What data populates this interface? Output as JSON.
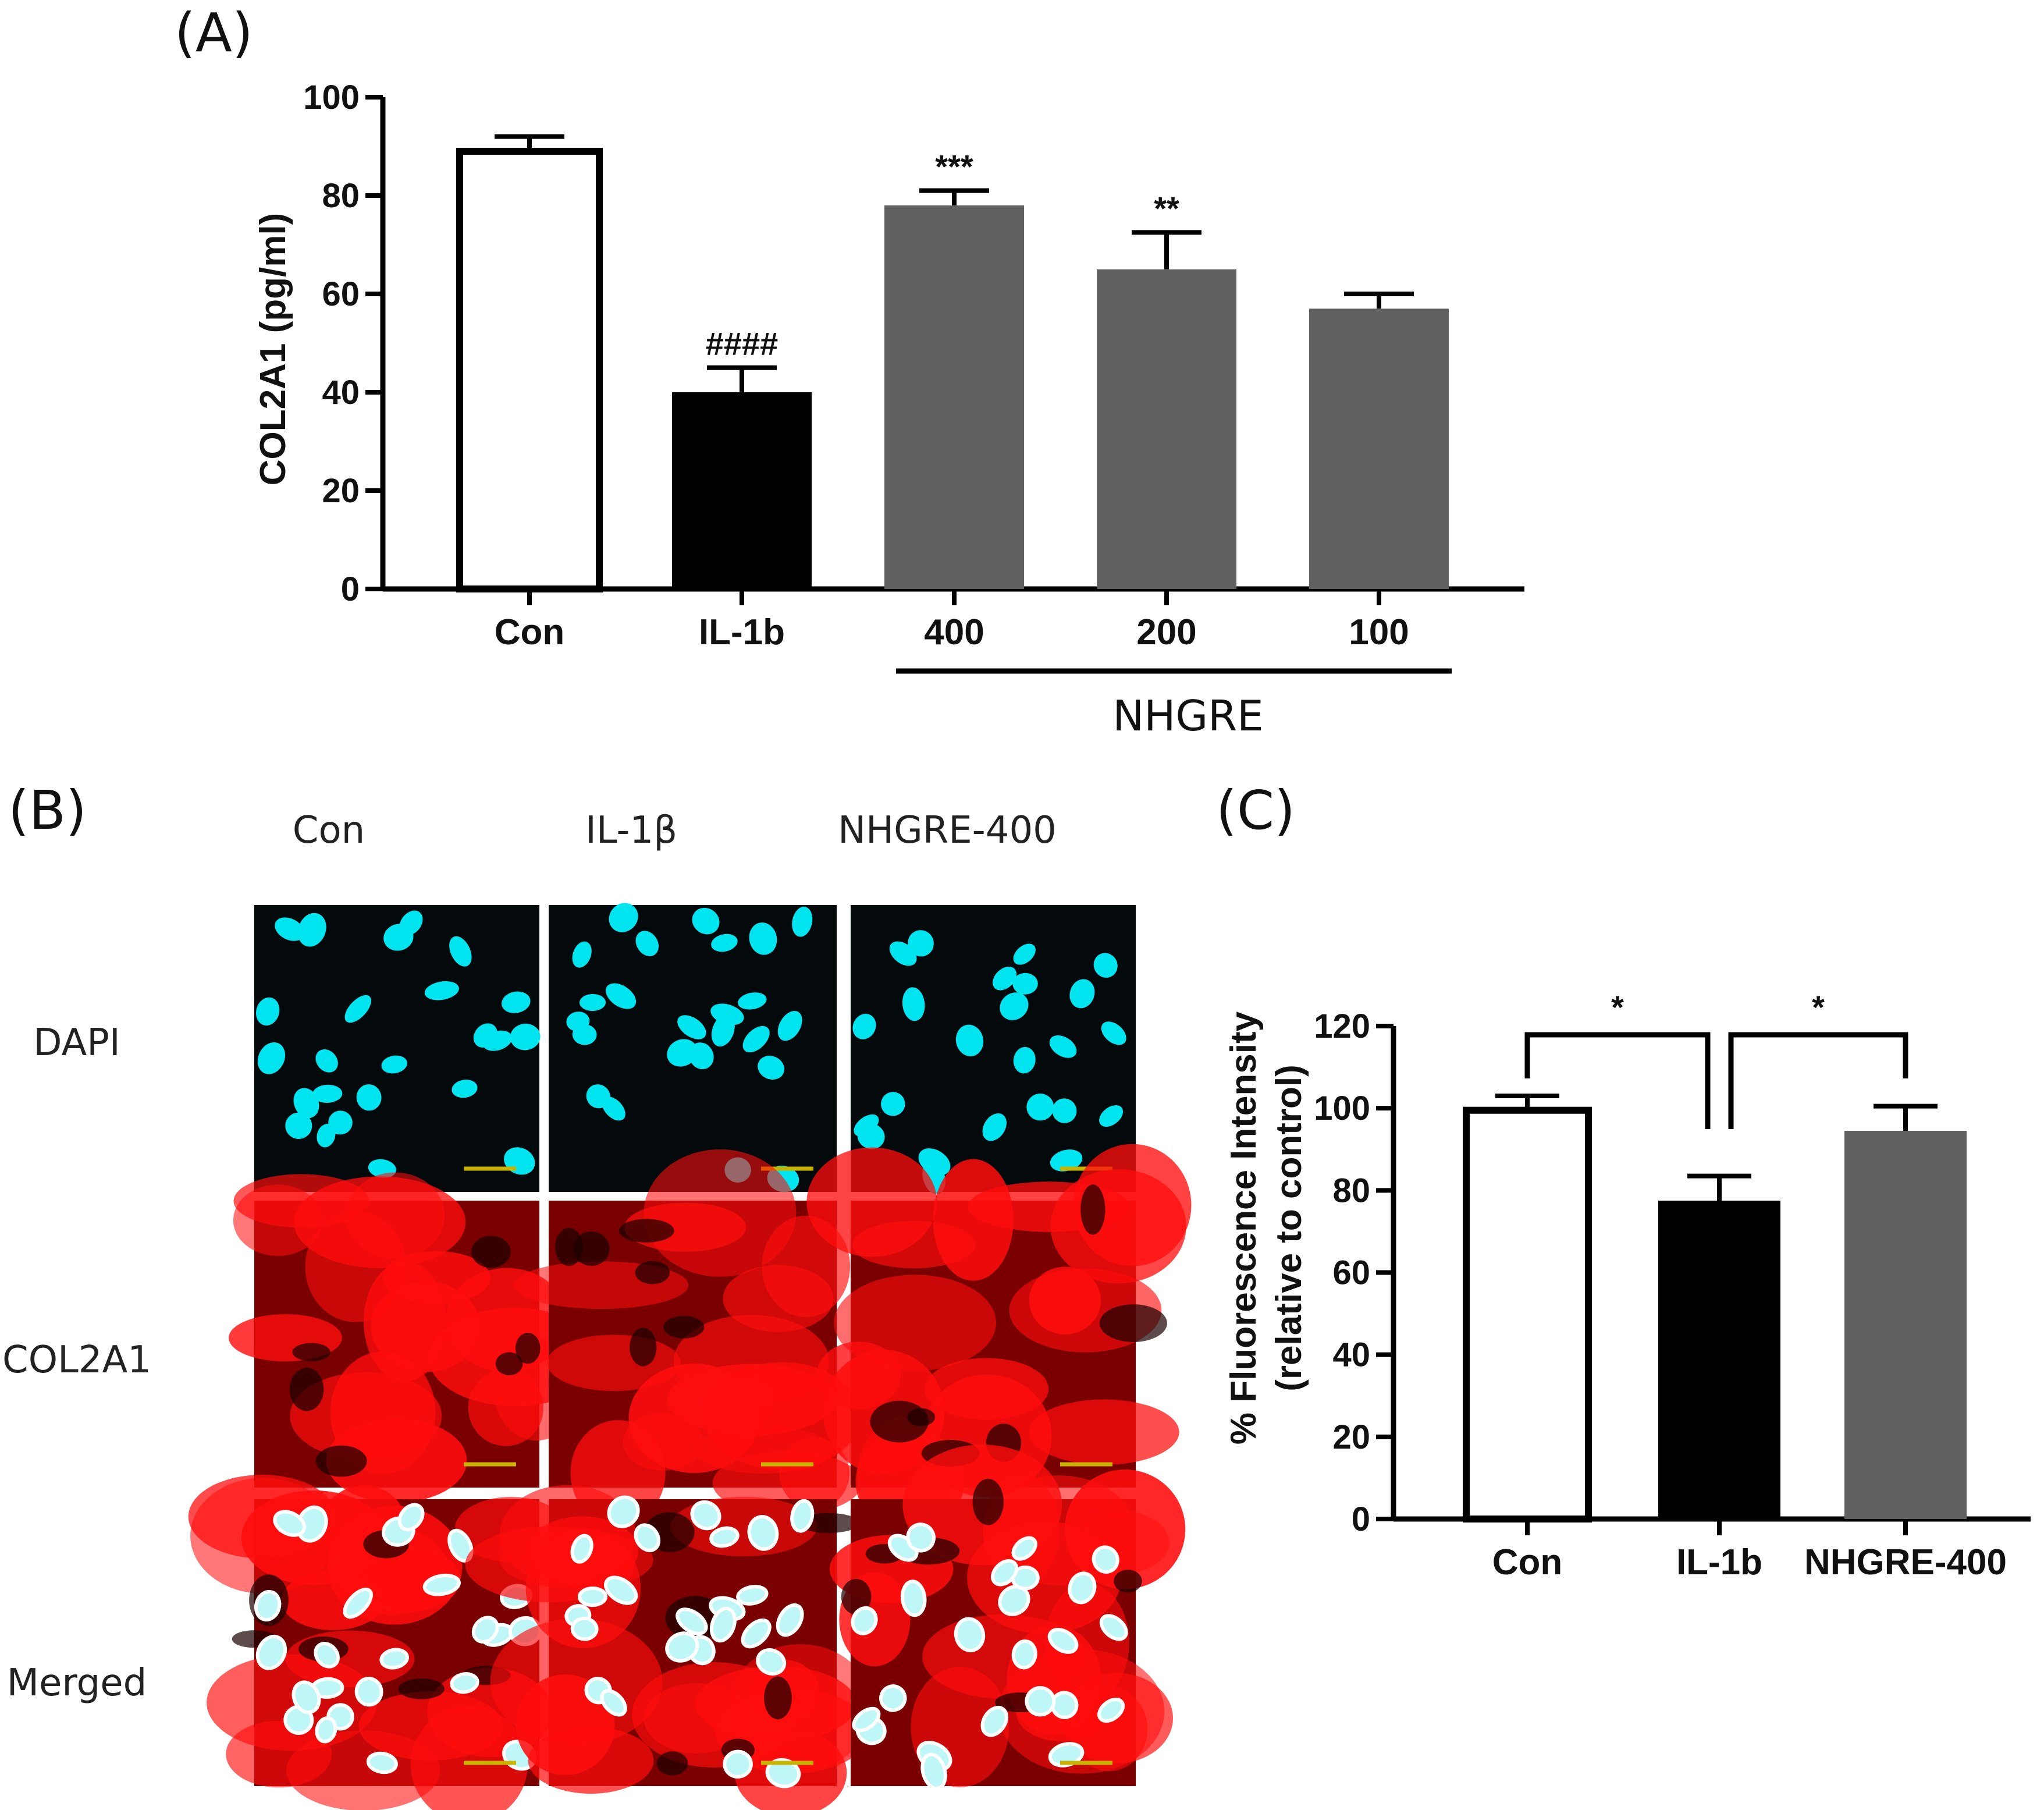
{
  "panel_labels": {
    "a": "(A)",
    "b": "(B)",
    "c": "(C)"
  },
  "colors": {
    "con": "#ffffff",
    "il1b": "#000000",
    "nhgre": "#606060",
    "dapi": "#00e5ef",
    "col2a1": "#ff0d0d",
    "scale_bar": "#c8b400"
  },
  "chart_data": [
    {
      "type": "bar",
      "panel": "A",
      "title": "",
      "ylabel": "COL2A1 (pg/ml)",
      "ylim": [
        0,
        100
      ],
      "yticks": [
        "0",
        "20",
        "40",
        "60",
        "80",
        "100"
      ],
      "categories": [
        "Con",
        "IL-1b",
        "400",
        "200",
        "100"
      ],
      "values": [
        89,
        40,
        78,
        65,
        57
      ],
      "errors": [
        3,
        5,
        3,
        7.5,
        3
      ],
      "significance": [
        "",
        "####",
        "***",
        "**",
        ""
      ],
      "group_label": "NHGRE",
      "group_span": [
        2,
        4
      ]
    },
    {
      "type": "bar",
      "panel": "C",
      "title": "",
      "ylabel": "% Fluorescence Intensity",
      "ylabel2": "(relative to control)",
      "ylim": [
        0,
        120
      ],
      "yticks": [
        "0",
        "20",
        "40",
        "60",
        "80",
        "100",
        "120"
      ],
      "categories": [
        "Con",
        "IL-1b",
        "NHGRE-400"
      ],
      "values": [
        99.5,
        77.5,
        94.5
      ],
      "errors": [
        3.5,
        6,
        6
      ],
      "comparisons": [
        {
          "from": 0,
          "to": 1,
          "label": "*"
        },
        {
          "from": 1,
          "to": 2,
          "label": "*"
        }
      ]
    }
  ],
  "panel_b": {
    "columns": [
      "Con",
      "IL-1β",
      "NHGRE-400"
    ],
    "rows": [
      "DAPI",
      "COL2A1",
      "Merged"
    ]
  }
}
